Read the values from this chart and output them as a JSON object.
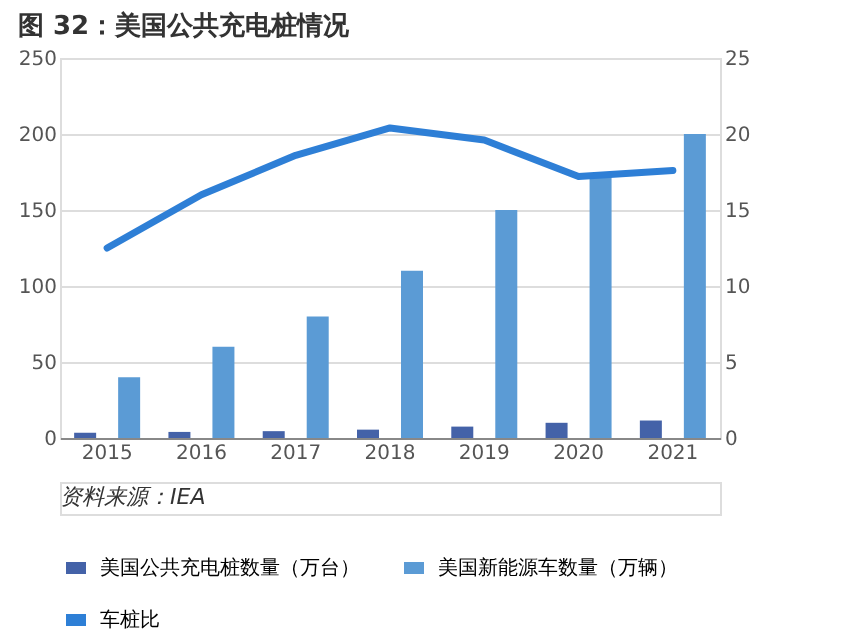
{
  "chart_data": {
    "type": "bar",
    "title": "图 32：美国公共充电桩情况",
    "categories": [
      "2015",
      "2016",
      "2017",
      "2018",
      "2019",
      "2020",
      "2021"
    ],
    "series": [
      {
        "name": "美国公共充电桩数量（万台）",
        "color": "#4462a8",
        "values": [
          3.5,
          4,
          4.5,
          5.5,
          7.5,
          10,
          11.5
        ]
      },
      {
        "name": "美国新能源车数量（万辆）",
        "color": "#5b9bd5",
        "values": [
          40,
          60,
          80,
          110,
          150,
          172,
          200
        ]
      },
      {
        "name": "车桩比",
        "type": "line",
        "axis": "y2",
        "color": "#2e7fd6",
        "values": [
          12.5,
          16.0,
          18.6,
          20.4,
          19.6,
          17.2,
          17.6
        ]
      }
    ],
    "ylim": [
      0,
      250
    ],
    "yticks": [
      0,
      50,
      100,
      150,
      200,
      250
    ],
    "y2lim": [
      0,
      25
    ],
    "y2ticks": [
      0,
      5,
      10,
      15,
      20,
      25
    ],
    "grid": "y",
    "legend": "bottom",
    "line_style": "solid",
    "marker": "none",
    "annotations": [
      "资料来源：IEA"
    ]
  }
}
